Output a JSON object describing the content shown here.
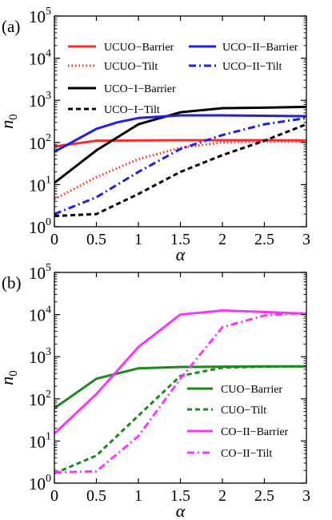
{
  "chart_data": [
    {
      "panel_label": "(a)",
      "type": "line",
      "xlabel": "α",
      "ylabel": "n",
      "ylabel_sub": "0",
      "xlim": [
        0,
        3
      ],
      "ylim": [
        1,
        100000
      ],
      "yscale": "log",
      "xticks": [
        0,
        0.5,
        1,
        1.5,
        2,
        2.5,
        3
      ],
      "xtick_labels": [
        "0",
        "0.5",
        "1",
        "1.5",
        "2",
        "2.5",
        "3"
      ],
      "yticks": [
        1,
        10,
        100,
        1000,
        10000,
        100000
      ],
      "ytick_bases": [
        "10",
        "10",
        "10",
        "10",
        "10",
        "10"
      ],
      "ytick_exps": [
        "0",
        "1",
        "2",
        "3",
        "4",
        "5"
      ],
      "grid": false,
      "legend": "top, two columns",
      "series": [
        {
          "name": "UCUO−Barrier",
          "color": "#ff2a2a",
          "dash": "solid",
          "x": [
            0,
            0.5,
            1,
            1.5,
            2,
            2.5,
            3
          ],
          "y": [
            80,
            110,
            112,
            113,
            113,
            113,
            112
          ]
        },
        {
          "name": "UCUO−Tilt",
          "color": "#ff2a2a",
          "dash": "dotted",
          "x": [
            0,
            0.5,
            1,
            1.5,
            2,
            2.5,
            3
          ],
          "y": [
            4.5,
            15,
            40,
            75,
            100,
            105,
            105
          ]
        },
        {
          "name": "UCO−I−Barrier",
          "color": "#000000",
          "dash": "solid",
          "x": [
            0,
            0.5,
            1,
            1.5,
            2,
            2.5,
            3
          ],
          "y": [
            11,
            65,
            270,
            520,
            650,
            670,
            700
          ]
        },
        {
          "name": "UCO−I−Tilt",
          "color": "#000000",
          "dash": "dashed",
          "x": [
            0,
            0.5,
            1,
            1.5,
            2,
            2.5,
            3
          ],
          "y": [
            1.8,
            2,
            6,
            20,
            50,
            110,
            270
          ]
        },
        {
          "name": "UCO−II−Barrier",
          "color": "#1f1fe8",
          "dash": "solid",
          "x": [
            0,
            0.5,
            0.75,
            1,
            1.5,
            2,
            2.5,
            3
          ],
          "y": [
            60,
            210,
            300,
            380,
            440,
            440,
            430,
            420
          ]
        },
        {
          "name": "UCO−II−Tilt",
          "color": "#1f1fe8",
          "dash": "dashdot",
          "x": [
            0,
            0.5,
            1,
            1.5,
            2,
            2.5,
            3
          ],
          "y": [
            2,
            5,
            20,
            70,
            150,
            270,
            380
          ]
        }
      ]
    },
    {
      "panel_label": "(b)",
      "type": "line",
      "xlabel": "α",
      "ylabel": "n",
      "ylabel_sub": "0",
      "xlim": [
        0,
        3
      ],
      "ylim": [
        1,
        100000
      ],
      "yscale": "log",
      "xticks": [
        0,
        0.5,
        1,
        1.5,
        2,
        2.5,
        3
      ],
      "xtick_labels": [
        "0",
        "0.5",
        "1",
        "1.5",
        "2",
        "2.5",
        "3"
      ],
      "yticks": [
        1,
        10,
        100,
        1000,
        10000,
        100000
      ],
      "ytick_bases": [
        "10",
        "10",
        "10",
        "10",
        "10",
        "10"
      ],
      "ytick_exps": [
        "0",
        "1",
        "2",
        "3",
        "4",
        "5"
      ],
      "grid": false,
      "legend": "lower right",
      "series": [
        {
          "name": "CUO−Barrier",
          "color": "#1a8a1a",
          "dash": "solid",
          "x": [
            0,
            0.5,
            1,
            1.5,
            2,
            2.5,
            3
          ],
          "y": [
            60,
            300,
            530,
            570,
            580,
            590,
            590
          ]
        },
        {
          "name": "CUO−Tilt",
          "color": "#1a8a1a",
          "dash": "dashed",
          "x": [
            0,
            0.5,
            1,
            1.5,
            2,
            2.5,
            3
          ],
          "y": [
            1.7,
            4.5,
            40,
            350,
            550,
            580,
            590
          ]
        },
        {
          "name": "CO−II−Barrier",
          "color": "#ff33ff",
          "dash": "solid",
          "x": [
            0,
            0.5,
            1,
            1.5,
            2,
            2.5,
            3
          ],
          "y": [
            15,
            130,
            1700,
            10000,
            12500,
            11500,
            10500
          ]
        },
        {
          "name": "CO−II−Tilt",
          "color": "#ff33ff",
          "dash": "dashdot",
          "x": [
            0,
            0.5,
            1,
            1.5,
            2,
            2.5,
            3
          ],
          "y": [
            1.8,
            1.9,
            13,
            300,
            5000,
            9500,
            11000
          ]
        }
      ]
    }
  ]
}
